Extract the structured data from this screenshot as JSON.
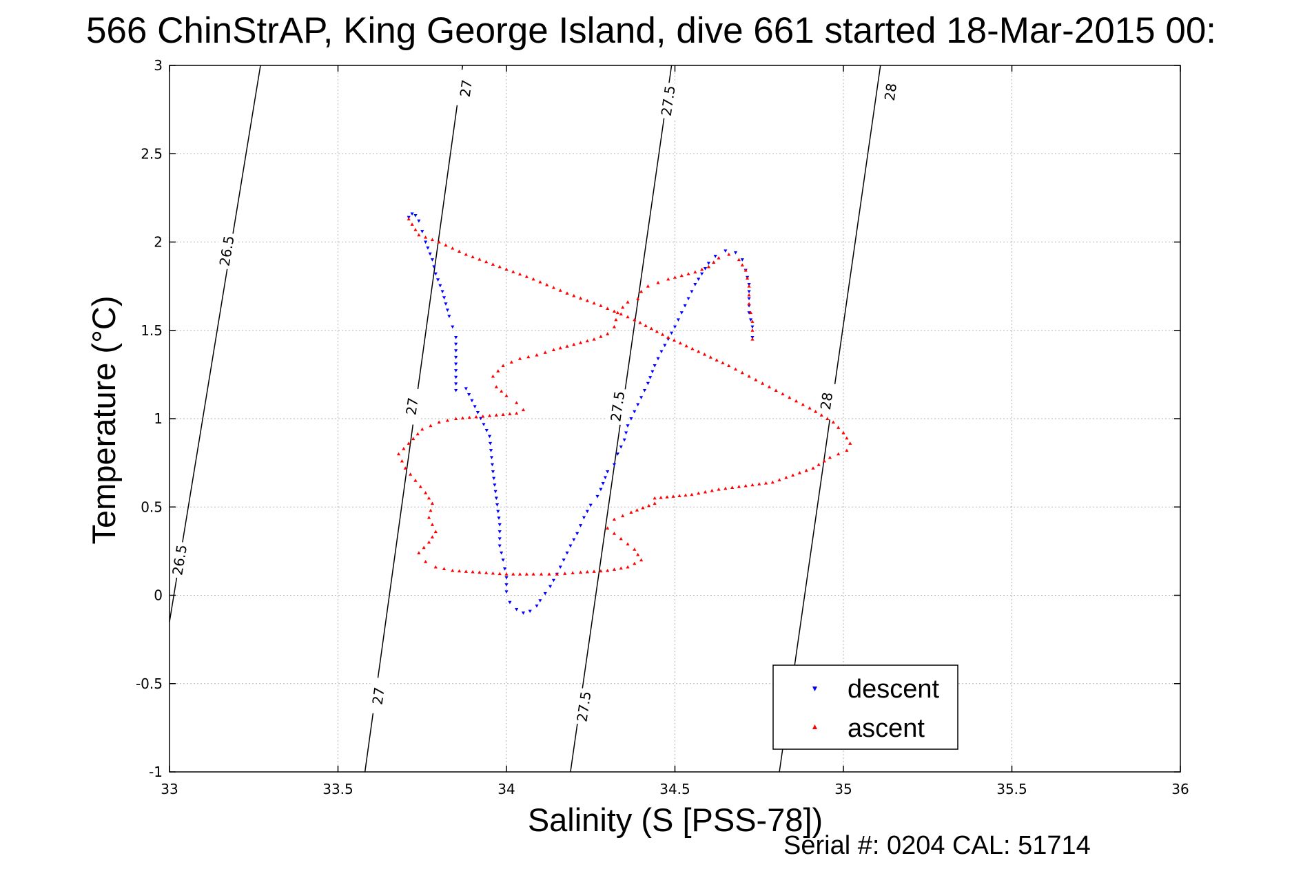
{
  "chart_data": {
    "type": "scatter",
    "title": "566 ChinStrAP, King George Island, dive 661 started 18-Mar-2015 00:",
    "xlabel": "Salinity (S [PSS-78])",
    "ylabel": "Temperature (°C)",
    "xlim": [
      33,
      36
    ],
    "ylim": [
      -1,
      3
    ],
    "xticks": [
      33,
      33.5,
      34,
      34.5,
      35,
      35.5,
      36
    ],
    "yticks": [
      -1,
      -0.5,
      0,
      0.5,
      1,
      1.5,
      2,
      2.5,
      3
    ],
    "xtick_labels": [
      "33",
      "33.5",
      "34",
      "34.5",
      "35",
      "35.5",
      "36"
    ],
    "ytick_labels": [
      "-1",
      "-0.5",
      "0",
      "0.5",
      "1",
      "1.5",
      "2",
      "2.5",
      "3"
    ],
    "grid": true,
    "legend_position": "bottom-right",
    "series": [
      {
        "name": "descent",
        "color": "#0000ff",
        "marker": "triangle-down",
        "points": [
          [
            33.71,
            2.14
          ],
          [
            33.72,
            2.16
          ],
          [
            33.73,
            2.15
          ],
          [
            33.74,
            2.12
          ],
          [
            33.75,
            2.06
          ],
          [
            33.76,
            2.0
          ],
          [
            33.78,
            1.9
          ],
          [
            33.79,
            1.82
          ],
          [
            33.81,
            1.72
          ],
          [
            33.82,
            1.65
          ],
          [
            33.83,
            1.58
          ],
          [
            33.84,
            1.52
          ],
          [
            33.85,
            1.46
          ],
          [
            33.85,
            1.16
          ],
          [
            33.88,
            1.17
          ],
          [
            33.95,
            0.9
          ],
          [
            33.96,
            0.7
          ],
          [
            33.97,
            0.55
          ],
          [
            33.98,
            0.4
          ],
          [
            33.98,
            0.28
          ],
          [
            33.99,
            0.2
          ],
          [
            34.0,
            0.1
          ],
          [
            34.0,
            0.02
          ],
          [
            34.01,
            -0.04
          ],
          [
            34.03,
            -0.08
          ],
          [
            34.05,
            -0.1
          ],
          [
            34.07,
            -0.09
          ],
          [
            34.09,
            -0.06
          ],
          [
            34.1,
            -0.03
          ],
          [
            34.13,
            0.05
          ],
          [
            34.15,
            0.12
          ],
          [
            34.17,
            0.2
          ],
          [
            34.19,
            0.28
          ],
          [
            34.21,
            0.35
          ],
          [
            34.23,
            0.44
          ],
          [
            34.25,
            0.51
          ],
          [
            34.27,
            0.56
          ],
          [
            34.28,
            0.6
          ],
          [
            34.3,
            0.7
          ],
          [
            34.32,
            0.74
          ],
          [
            34.33,
            0.8
          ],
          [
            34.35,
            0.88
          ],
          [
            34.36,
            0.96
          ],
          [
            34.38,
            1.04
          ],
          [
            34.4,
            1.12
          ],
          [
            34.42,
            1.2
          ],
          [
            34.44,
            1.3
          ],
          [
            34.46,
            1.38
          ],
          [
            34.48,
            1.45
          ],
          [
            34.5,
            1.52
          ],
          [
            34.52,
            1.6
          ],
          [
            34.54,
            1.68
          ],
          [
            34.56,
            1.76
          ],
          [
            34.58,
            1.82
          ],
          [
            34.6,
            1.88
          ],
          [
            34.62,
            1.92
          ],
          [
            34.65,
            1.95
          ],
          [
            34.68,
            1.94
          ],
          [
            34.7,
            1.9
          ],
          [
            34.71,
            1.84
          ],
          [
            34.72,
            1.76
          ],
          [
            34.72,
            1.68
          ],
          [
            34.72,
            1.6
          ],
          [
            34.73,
            1.52
          ],
          [
            34.73,
            1.46
          ]
        ]
      },
      {
        "name": "ascent",
        "color": "#ff0000",
        "marker": "triangle-up",
        "points": [
          [
            34.73,
            1.45
          ],
          [
            34.73,
            1.55
          ],
          [
            34.72,
            1.65
          ],
          [
            34.72,
            1.75
          ],
          [
            34.71,
            1.84
          ],
          [
            34.69,
            1.9
          ],
          [
            34.66,
            1.93
          ],
          [
            34.63,
            1.91
          ],
          [
            34.6,
            1.86
          ],
          [
            34.56,
            1.83
          ],
          [
            34.52,
            1.81
          ],
          [
            34.48,
            1.79
          ],
          [
            34.45,
            1.77
          ],
          [
            34.42,
            1.75
          ],
          [
            34.4,
            1.72
          ],
          [
            34.39,
            1.68
          ],
          [
            34.36,
            1.66
          ],
          [
            34.33,
            1.6
          ],
          [
            34.32,
            1.52
          ],
          [
            34.3,
            1.48
          ],
          [
            34.26,
            1.45
          ],
          [
            34.2,
            1.42
          ],
          [
            34.14,
            1.39
          ],
          [
            34.09,
            1.36
          ],
          [
            34.04,
            1.34
          ],
          [
            33.99,
            1.3
          ],
          [
            33.96,
            1.24
          ],
          [
            33.97,
            1.18
          ],
          [
            34.0,
            1.13
          ],
          [
            34.03,
            1.09
          ],
          [
            34.05,
            1.05
          ],
          [
            34.03,
            1.03
          ],
          [
            33.97,
            1.02
          ],
          [
            33.91,
            1.01
          ],
          [
            33.85,
            1.0
          ],
          [
            33.8,
            0.98
          ],
          [
            33.75,
            0.94
          ],
          [
            33.71,
            0.86
          ],
          [
            33.68,
            0.8
          ],
          [
            33.7,
            0.72
          ],
          [
            33.73,
            0.65
          ],
          [
            33.76,
            0.58
          ],
          [
            33.78,
            0.52
          ],
          [
            33.77,
            0.44
          ],
          [
            33.79,
            0.36
          ],
          [
            33.77,
            0.3
          ],
          [
            33.74,
            0.24
          ],
          [
            33.76,
            0.19
          ],
          [
            33.79,
            0.16
          ],
          [
            33.84,
            0.14
          ],
          [
            33.92,
            0.13
          ],
          [
            34.0,
            0.12
          ],
          [
            34.08,
            0.12
          ],
          [
            34.15,
            0.12
          ],
          [
            34.22,
            0.13
          ],
          [
            34.3,
            0.14
          ],
          [
            34.36,
            0.16
          ],
          [
            34.4,
            0.2
          ],
          [
            34.38,
            0.26
          ],
          [
            34.34,
            0.32
          ],
          [
            34.3,
            0.38
          ],
          [
            34.32,
            0.43
          ],
          [
            34.37,
            0.47
          ],
          [
            34.44,
            0.52
          ],
          [
            34.44,
            0.55
          ],
          [
            34.55,
            0.57
          ],
          [
            34.63,
            0.6
          ],
          [
            34.71,
            0.62
          ],
          [
            34.79,
            0.64
          ],
          [
            34.85,
            0.68
          ],
          [
            34.91,
            0.72
          ],
          [
            34.96,
            0.78
          ],
          [
            35.01,
            0.82
          ],
          [
            35.02,
            0.86
          ],
          [
            35.0,
            0.92
          ],
          [
            34.97,
            0.98
          ],
          [
            34.9,
            1.06
          ],
          [
            34.82,
            1.14
          ],
          [
            34.74,
            1.22
          ],
          [
            34.66,
            1.3
          ],
          [
            34.57,
            1.38
          ],
          [
            34.48,
            1.46
          ],
          [
            34.38,
            1.56
          ],
          [
            34.28,
            1.64
          ],
          [
            34.18,
            1.71
          ],
          [
            34.08,
            1.79
          ],
          [
            33.98,
            1.86
          ],
          [
            33.88,
            1.93
          ],
          [
            33.8,
            2.0
          ],
          [
            33.74,
            2.04
          ],
          [
            33.71,
            2.13
          ]
        ]
      }
    ],
    "contours": [
      {
        "label": "26.5",
        "points": [
          [
            33.0,
            -0.15
          ],
          [
            33.27,
            3.0
          ]
        ],
        "label_positions": [
          [
            33.03,
            0.2
          ],
          [
            33.17,
            1.95
          ]
        ]
      },
      {
        "label": "27",
        "points": [
          [
            33.58,
            -1.0
          ],
          [
            33.87,
            3.0
          ]
        ],
        "label_positions": [
          [
            33.62,
            -0.57
          ],
          [
            33.72,
            1.07
          ],
          [
            33.88,
            2.87
          ]
        ]
      },
      {
        "label": "27.5",
        "points": [
          [
            34.19,
            -1.0
          ],
          [
            34.49,
            3.0
          ]
        ],
        "label_positions": [
          [
            34.23,
            -0.63
          ],
          [
            34.33,
            1.07
          ],
          [
            34.48,
            2.8
          ]
        ]
      },
      {
        "label": "28",
        "points": [
          [
            34.81,
            -1.0
          ],
          [
            35.11,
            3.0
          ]
        ],
        "label_positions": [
          [
            34.95,
            1.1
          ],
          [
            35.14,
            2.85
          ]
        ]
      }
    ],
    "footer": "Serial #: 0204  CAL: 51714"
  }
}
